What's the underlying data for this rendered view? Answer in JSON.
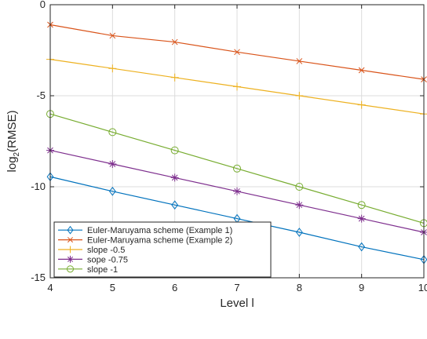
{
  "chart_data": {
    "type": "line",
    "title": "",
    "xlabel": "Level l",
    "ylabel_main": "log",
    "ylabel_sub": "2",
    "ylabel_rest": "(RMSE)",
    "xlim": [
      4,
      10
    ],
    "ylim": [
      -15,
      0
    ],
    "xticks": [
      4,
      5,
      6,
      7,
      8,
      9,
      10
    ],
    "yticks": [
      0,
      -5,
      -10,
      -15
    ],
    "ytick_labels": [
      "0",
      "-5",
      "-10",
      "-15"
    ],
    "grid": true,
    "legend_position": "bottom-left",
    "x": [
      4,
      5,
      6,
      7,
      8,
      9,
      10
    ],
    "series": [
      {
        "name": "Euler-Maruyama scheme (Example 1)",
        "color": "#0072BD",
        "marker": "diamond",
        "values": [
          -9.45,
          -10.25,
          -11.0,
          -11.75,
          -12.5,
          -13.3,
          -14.0
        ]
      },
      {
        "name": "Euler-Maruyama scheme (Example 2)",
        "color": "#D95319",
        "marker": "x",
        "values": [
          -1.1,
          -1.7,
          -2.05,
          -2.6,
          -3.1,
          -3.6,
          -4.1
        ]
      },
      {
        "name": "slope -0.5",
        "color": "#EDB120",
        "marker": "plus",
        "values": [
          -3.0,
          -3.5,
          -4.0,
          -4.5,
          -5.0,
          -5.5,
          -6.0
        ]
      },
      {
        "name": "sope -0.75",
        "color": "#7E2F8E",
        "marker": "star",
        "values": [
          -8.0,
          -8.75,
          -9.5,
          -10.25,
          -11.0,
          -11.75,
          -12.5
        ]
      },
      {
        "name": "slope -1",
        "color": "#77AC30",
        "marker": "circle",
        "values": [
          -6.0,
          -7.0,
          -8.0,
          -9.0,
          -10.0,
          -11.0,
          -12.0
        ]
      }
    ]
  }
}
